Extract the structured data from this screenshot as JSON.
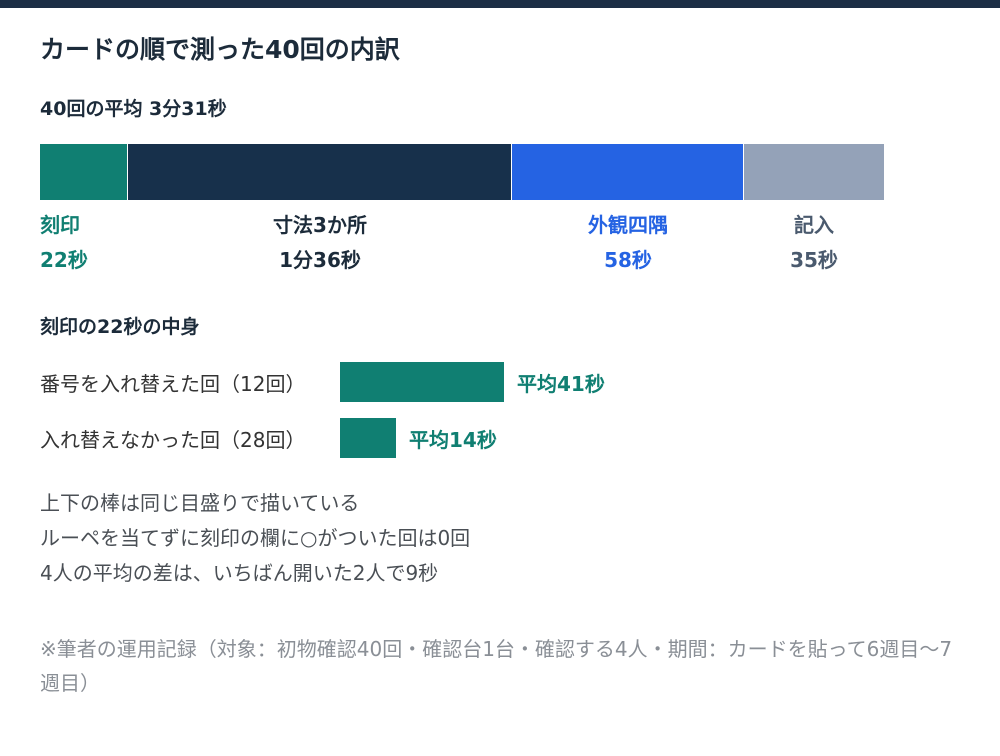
{
  "title": "カードの順で測った40回の内訳",
  "subtitle": "40回の平均 3分31秒",
  "chart_data": [
    {
      "type": "bar",
      "orientation": "horizontal-stacked",
      "unit": "秒",
      "total_label": "3分31秒",
      "series": [
        {
          "name": "刻印",
          "value": 22,
          "value_label": "22秒",
          "color": "#107f72"
        },
        {
          "name": "寸法3か所",
          "value": 96,
          "value_label": "1分36秒",
          "color": "#17304b"
        },
        {
          "name": "外観四隅",
          "value": 58,
          "value_label": "58秒",
          "color": "#2563e3"
        },
        {
          "name": "記入",
          "value": 35,
          "value_label": "35秒",
          "color": "#94a2b8"
        }
      ]
    },
    {
      "type": "bar",
      "orientation": "horizontal",
      "title": "刻印の22秒の中身",
      "unit": "秒",
      "categories": [
        "番号を入れ替えた回（12回）",
        "入れ替えなかった回（28回）"
      ],
      "values": [
        41,
        14
      ],
      "value_labels": [
        "平均41秒",
        "平均14秒"
      ],
      "color": "#107f72"
    }
  ],
  "notes": [
    "上下の棒は同じ目盛りで描いている",
    "ルーペを当てずに刻印の欄に○がついた回は0回",
    "4人の平均の差は、いちばん開いた2人で9秒"
  ],
  "footnote": "※筆者の運用記録（対象：初物確認40回・確認台1台・確認する4人・期間：カードを貼って6週目〜7週目）"
}
